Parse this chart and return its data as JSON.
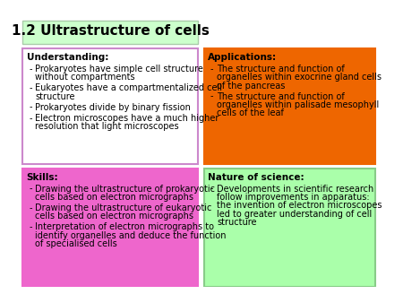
{
  "title": "1.2 Ultrastructure of cells",
  "title_bg": "#ccffcc",
  "title_border": "#aaccaa",
  "title_fontsize": 11,
  "bg_color": "#ffffff",
  "boxes": [
    {
      "label": "Understanding:",
      "bg_color": "#ffffff",
      "border_color": "#cc88cc",
      "label_color": "#000000",
      "text_color": "#000000",
      "items": [
        "Prokaryotes have simple cell structure\nwithout compartments",
        "Eukaryotes have a compartmentalized cell\nstructure",
        "Prokaryotes divide by binary fission",
        "Electron microscopes have a much higher\nresolution that light microscopes"
      ],
      "row": 0,
      "col": 0
    },
    {
      "label": "Applications:",
      "bg_color": "#ee6600",
      "border_color": "#ee6600",
      "label_color": "#000000",
      "text_color": "#000000",
      "items": [
        "The structure and function of\norganelles within exocrine gland cells\nof the pancreas",
        "The structure and function of\norganelles within palisade mesophyll\ncells of the leaf"
      ],
      "row": 0,
      "col": 1
    },
    {
      "label": "Skills:",
      "bg_color": "#ee66cc",
      "border_color": "#ee66cc",
      "label_color": "#000000",
      "text_color": "#000000",
      "items": [
        "Drawing the ultrastructure of prokaryotic\ncells based on electron micrographs",
        "Drawing the ultrastructure of eukaryotic\ncells based on electron micrographs",
        "Interpretation of electron micrographs to\nidentify organelles and deduce the function\nof specialised cells"
      ],
      "row": 1,
      "col": 0
    },
    {
      "label": "Nature of science:",
      "bg_color": "#aaffaa",
      "border_color": "#88cc88",
      "label_color": "#000000",
      "text_color": "#000000",
      "items": [
        "Developments in scientific research\nfollow improvements in apparatus:\nthe invention of electron microscopes\nled to greater understanding of cell\nstructure"
      ],
      "row": 1,
      "col": 1
    }
  ]
}
